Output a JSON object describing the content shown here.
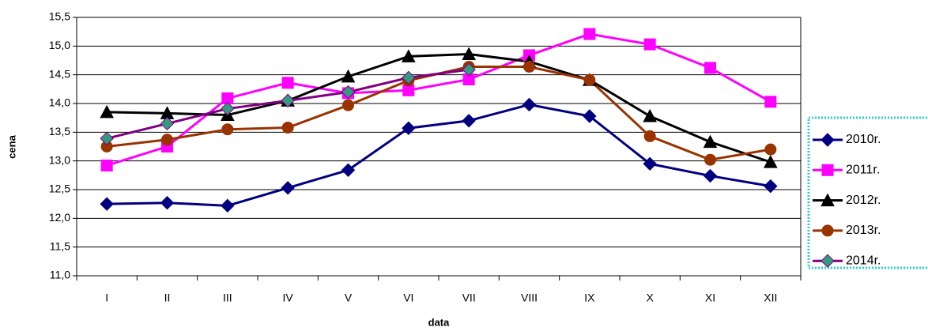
{
  "chart_data": {
    "type": "line",
    "x_label": "data",
    "y_label": "cena",
    "categories": [
      "I",
      "II",
      "III",
      "IV",
      "V",
      "VI",
      "VII",
      "VIII",
      "IX",
      "X",
      "XI",
      "XII"
    ],
    "ylim": [
      11.0,
      15.5
    ],
    "yticks": [
      {
        "value": 11.0,
        "label": "11,0"
      },
      {
        "value": 11.5,
        "label": "11,5"
      },
      {
        "value": 12.0,
        "label": "12,0"
      },
      {
        "value": 12.5,
        "label": "12,5"
      },
      {
        "value": 13.0,
        "label": "13,0"
      },
      {
        "value": 13.5,
        "label": "13,5"
      },
      {
        "value": 14.0,
        "label": "14,0"
      },
      {
        "value": 14.5,
        "label": "14,5"
      },
      {
        "value": 15.0,
        "label": "15,0"
      },
      {
        "value": 15.5,
        "label": "15,5"
      }
    ],
    "grid": true,
    "legend": "right",
    "series": [
      {
        "name": "2010r.",
        "color": "#000080",
        "marker": "diamond",
        "marker_color": "#000080",
        "values": [
          12.25,
          12.27,
          12.22,
          12.53,
          12.84,
          13.57,
          13.7,
          13.98,
          13.78,
          12.95,
          12.74,
          12.56
        ]
      },
      {
        "name": "2011r.",
        "color": "#ff00ff",
        "marker": "square",
        "marker_color": "#ff00ff",
        "values": [
          12.92,
          13.25,
          14.09,
          14.36,
          14.18,
          14.23,
          14.42,
          14.84,
          15.21,
          15.03,
          14.62,
          14.03
        ]
      },
      {
        "name": "2012r.",
        "color": "#000000",
        "marker": "triangle",
        "marker_color": "#000000",
        "values": [
          13.85,
          13.83,
          13.8,
          14.05,
          14.47,
          14.82,
          14.86,
          14.73,
          14.41,
          13.78,
          13.33,
          12.98
        ]
      },
      {
        "name": "2013r.",
        "color": "#993300",
        "marker": "circle",
        "marker_color": "#993300",
        "values": [
          13.25,
          13.37,
          13.55,
          13.58,
          13.97,
          14.4,
          14.64,
          14.64,
          14.41,
          13.43,
          13.02,
          13.2
        ]
      },
      {
        "name": "2014r.",
        "color": "#800080",
        "marker": "diamond",
        "marker_color": "#339980",
        "values": [
          13.39,
          13.65,
          13.91,
          14.05,
          14.2,
          14.45,
          14.59,
          null,
          null,
          null,
          null,
          null
        ]
      }
    ]
  }
}
